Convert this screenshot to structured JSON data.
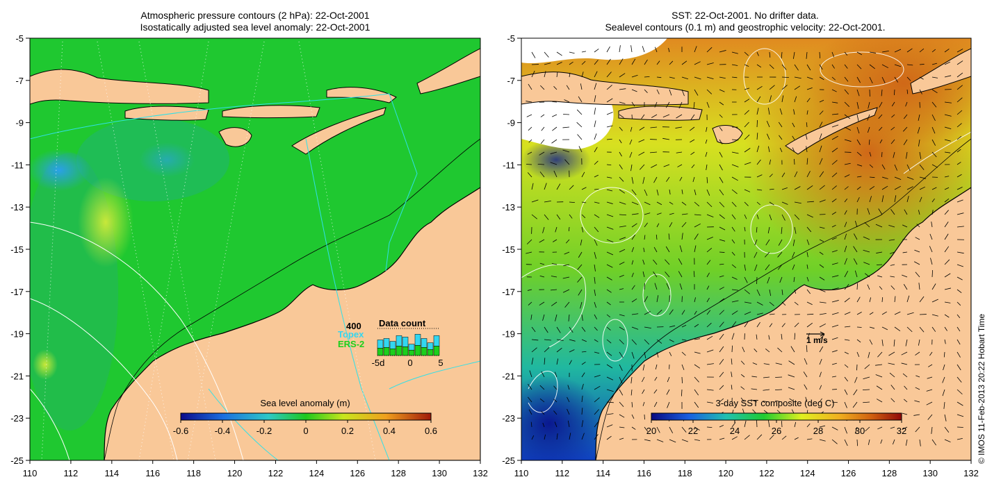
{
  "left_panel": {
    "title_line1": "Atmospheric pressure contours (2 hPa): 22-Oct-2001",
    "title_line2": "Isostatically adjusted sea level anomaly: 22-Oct-2001",
    "colorbar": {
      "title": "Sea level anomaly (m)",
      "ticks": [
        "-0.6",
        "-0.4",
        "-0.2",
        "0",
        "0.2",
        "0.4",
        "0.6"
      ]
    },
    "data_count": {
      "title": "Data count",
      "max_label": "400",
      "topex_label": "Topex",
      "ers_label": "ERS-2",
      "axis_labels": [
        "-5d",
        "0",
        "5"
      ],
      "topex_color": "#33d6f0",
      "ers_color": "#1ccf1c",
      "topex_fraction": [
        0.55,
        0.6,
        0.5,
        0.7,
        0.65,
        0.4,
        0.75,
        0.6,
        0.45,
        0.7
      ],
      "ers_fraction": [
        0.55,
        0.6,
        0.5,
        0.7,
        0.65,
        0.4,
        0.75,
        0.6,
        0.45,
        0.7
      ]
    }
  },
  "right_panel": {
    "title_line1": "SST: 22-Oct-2001. No drifter data.",
    "title_line2": "Sealevel contours (0.1 m) and geostrophic velocity: 22-Oct-2001.",
    "colorbar": {
      "title": "3-day SST composite (deg C)",
      "ticks": [
        "20",
        "22",
        "24",
        "26",
        "28",
        "30",
        "32"
      ]
    },
    "velocity_scale_label": "1 m/s"
  },
  "axes": {
    "lat_ticks": [
      "-5",
      "-7",
      "-9",
      "-11",
      "-13",
      "-15",
      "-17",
      "-19",
      "-21",
      "-23",
      "-25"
    ],
    "lon_ticks": [
      "110",
      "112",
      "114",
      "116",
      "118",
      "120",
      "122",
      "124",
      "126",
      "128",
      "130",
      "132"
    ]
  },
  "credit": "© IMOS 11-Feb-2013 20:22 Hobart Time",
  "colors": {
    "land": "#f9c898",
    "sla_colormap": [
      "#0b0b8a",
      "#1b6fe0",
      "#2ec8c8",
      "#1ec81e",
      "#c8e61e",
      "#f0a01e",
      "#a01a0a"
    ],
    "sst_colormap": [
      "#0a0a80",
      "#1a5fe0",
      "#20c0b0",
      "#20cc30",
      "#e0f020",
      "#f0b020",
      "#d06010",
      "#900808"
    ]
  }
}
